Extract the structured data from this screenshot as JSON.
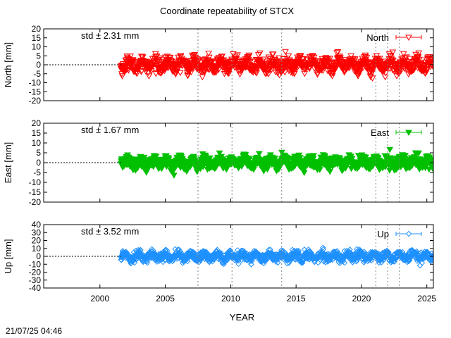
{
  "title": "Coordinate repeatability of STCX",
  "timestamp": "21/07/25 04:46",
  "colors": {
    "north": "#ff0000",
    "east": "#00c000",
    "up": "#1e90ff",
    "axis": "#000000",
    "event_line": "#808080"
  },
  "chart_data": [
    {
      "type": "scatter",
      "panel": "north",
      "title": "Coordinate repeatability of STCX",
      "xlabel": "",
      "ylabel": "North [mm]",
      "xlim": [
        1995.7,
        2025.5
      ],
      "ylim": [
        -20,
        20
      ],
      "x_ticks": [],
      "y_ticks": [
        20,
        15,
        10,
        5,
        0,
        -5,
        -10,
        -15,
        -20
      ],
      "y_tick_labels": [
        "20",
        "15",
        "10",
        "5",
        "0",
        "-5",
        "-10",
        "-15",
        "-20"
      ],
      "std_label": "std ± 2.31 mm",
      "series": [
        {
          "name": "North",
          "marker": "triangle-down-open",
          "x_range": [
            2001.6,
            2025.5
          ],
          "std_mm": 2.31
        }
      ],
      "legend": "top-right",
      "zero_line": true,
      "event_lines": [
        2007.5,
        2010.1,
        2013.9,
        2021.1,
        2022.0,
        2022.9
      ]
    },
    {
      "type": "scatter",
      "panel": "east",
      "xlabel": "",
      "ylabel": "East [mm]",
      "xlim": [
        1995.7,
        2025.5
      ],
      "ylim": [
        -20,
        20
      ],
      "x_ticks": [],
      "y_ticks": [
        20,
        15,
        10,
        5,
        0,
        -5,
        -10,
        -15,
        -20
      ],
      "y_tick_labels": [
        "20",
        "15",
        "10",
        "5",
        "0",
        "-5",
        "-10",
        "-15",
        "-20"
      ],
      "std_label": "std ± 1.67 mm",
      "series": [
        {
          "name": "East",
          "marker": "triangle-down-filled",
          "x_range": [
            2001.6,
            2025.5
          ],
          "std_mm": 1.67
        }
      ],
      "legend": "top-right",
      "zero_line": true,
      "event_lines": [
        2007.5,
        2010.1,
        2013.9,
        2021.1,
        2022.0,
        2022.9
      ]
    },
    {
      "type": "scatter",
      "panel": "up",
      "xlabel": "YEAR",
      "ylabel": "Up [mm]",
      "xlim": [
        1995.7,
        2025.5
      ],
      "ylim": [
        -40,
        40
      ],
      "x_ticks": [
        2000,
        2005,
        2010,
        2015,
        2020,
        2025
      ],
      "x_tick_labels": [
        "2000",
        "2005",
        "2010",
        "2015",
        "2020",
        "2025"
      ],
      "y_ticks": [
        40,
        30,
        20,
        10,
        0,
        -10,
        -20,
        -30,
        -40
      ],
      "y_tick_labels": [
        "40",
        "30",
        "20",
        "10",
        "0",
        "-10",
        "-20",
        "-30",
        "-40"
      ],
      "std_label": "std ± 3.52 mm",
      "series": [
        {
          "name": "Up",
          "marker": "diamond-open",
          "x_range": [
            2001.6,
            2025.5
          ],
          "std_mm": 3.52
        }
      ],
      "legend": "top-right",
      "zero_line": true,
      "event_lines": [
        2007.5,
        2010.1,
        2013.9,
        2021.1,
        2022.0,
        2022.9
      ]
    }
  ]
}
